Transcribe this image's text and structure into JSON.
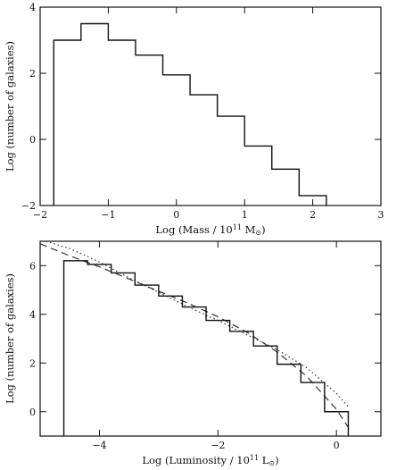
{
  "chart_data": [
    {
      "type": "step",
      "xlabel": {
        "prefix": "Log (Mass / 10",
        "sup": "11",
        "mid": " M",
        "sub": "⊙",
        "suffix": ")"
      },
      "ylabel": "Log (number of galaxies)",
      "xlim": [
        -2,
        3
      ],
      "ylim": [
        -2,
        4
      ],
      "xticks": [
        -2,
        -1,
        0,
        1,
        2,
        3
      ],
      "xtick_labels": [
        "−2",
        "−1",
        "0",
        "1",
        "2",
        "3"
      ],
      "yticks": [
        -2,
        0,
        2,
        4
      ],
      "ytick_labels": [
        "−2",
        "0",
        "2",
        "4"
      ],
      "bin_edges": [
        -1.8,
        -1.4,
        -1.0,
        -0.6,
        -0.2,
        0.2,
        0.6,
        1.0,
        1.4,
        1.8,
        2.2
      ],
      "values": [
        3.0,
        3.5,
        3.0,
        2.55,
        1.95,
        1.35,
        0.7,
        -0.2,
        -0.9,
        -1.7
      ],
      "baseline": -2
    },
    {
      "type": "step",
      "xlabel": {
        "prefix": "Log (Luminosity / 10",
        "sup": "11",
        "mid": " L",
        "sub": "⊙",
        "suffix": ")"
      },
      "ylabel": "Log (number of galaxies)",
      "xlim": [
        -5,
        0.75
      ],
      "ylim": [
        -1,
        7
      ],
      "xticks": [
        -4,
        -2,
        0
      ],
      "xtick_labels": [
        "−4",
        "−2",
        "0"
      ],
      "yticks": [
        0,
        2,
        4,
        6
      ],
      "ytick_labels": [
        "0",
        "2",
        "4",
        "6"
      ],
      "bin_edges": [
        -4.6,
        -4.2,
        -3.8,
        -3.4,
        -3.0,
        -2.6,
        -2.2,
        -1.8,
        -1.4,
        -1.0,
        -0.6,
        -0.2,
        0.2
      ],
      "values": [
        6.2,
        6.05,
        5.7,
        5.2,
        4.75,
        4.3,
        3.75,
        3.3,
        2.7,
        1.95,
        1.2,
        0.0
      ],
      "baseline": -1,
      "fits": [
        {
          "style": "dashed",
          "x": [
            -5.0,
            -4.5,
            -4.0,
            -3.5,
            -3.0,
            -2.5,
            -2.0,
            -1.5,
            -1.0,
            -0.5,
            0.0,
            0.2
          ],
          "y": [
            6.9,
            6.4,
            5.95,
            5.45,
            4.95,
            4.45,
            3.9,
            3.25,
            2.45,
            1.45,
            0.1,
            -0.65
          ]
        },
        {
          "style": "dotted",
          "x": [
            -4.9,
            -4.5,
            -4.0,
            -3.5,
            -3.0,
            -2.5,
            -2.0,
            -1.5,
            -1.0,
            -0.5,
            0.0,
            0.2
          ],
          "y": [
            7.0,
            6.7,
            6.15,
            5.5,
            4.9,
            4.3,
            3.75,
            3.15,
            2.55,
            1.8,
            0.75,
            0.2
          ]
        }
      ]
    }
  ]
}
